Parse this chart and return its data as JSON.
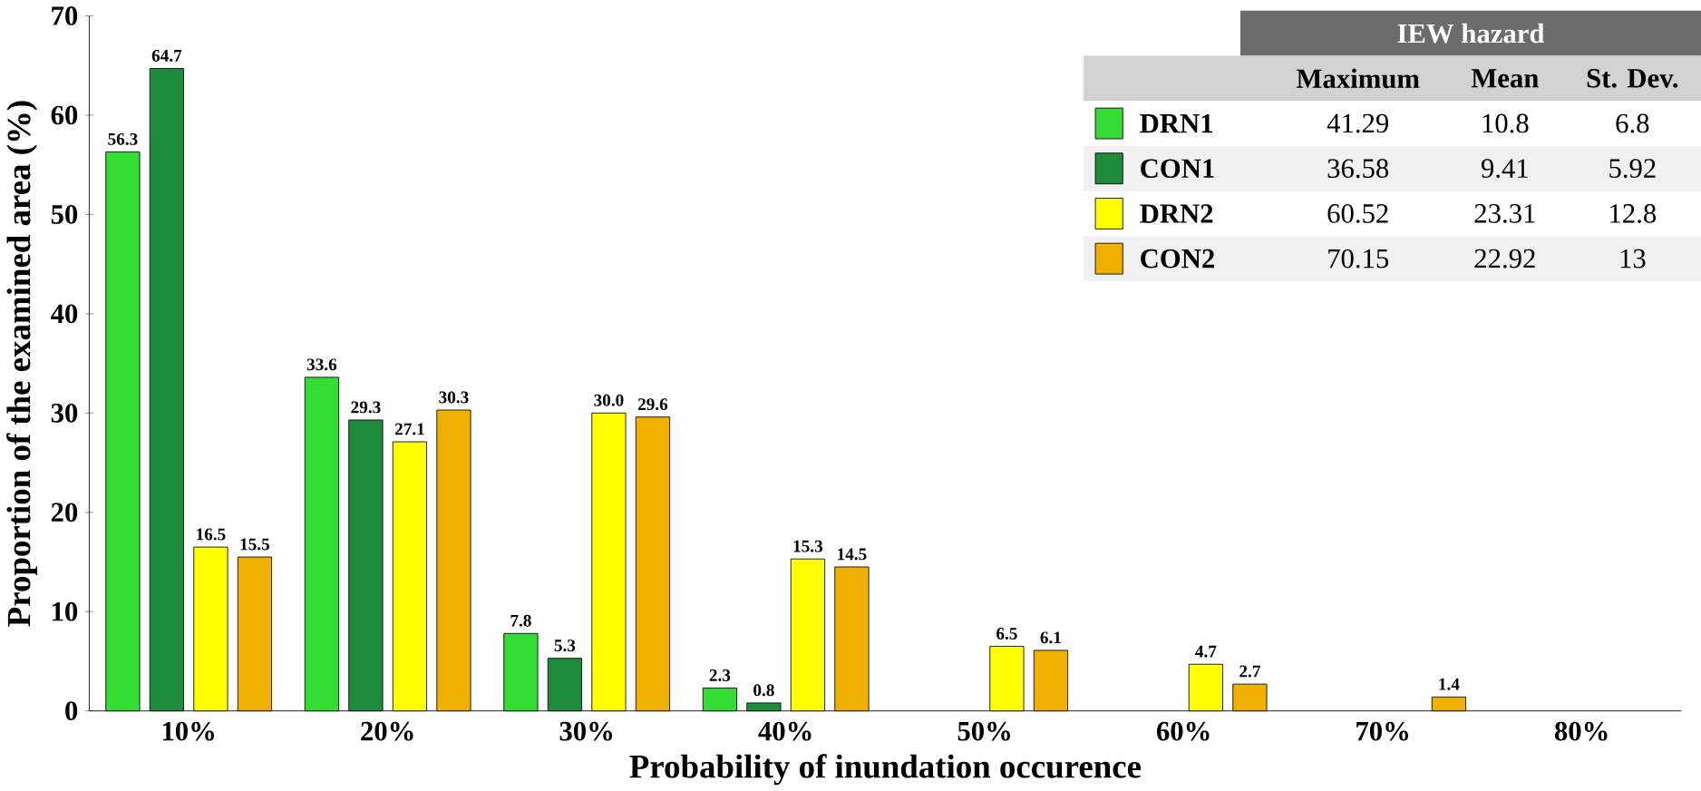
{
  "chart_data": {
    "type": "bar",
    "xlabel": "Probability of inundation occurence",
    "ylabel": "Proportion of the examined area (%)",
    "categories": [
      "10%",
      "20%",
      "30%",
      "40%",
      "50%",
      "60%",
      "70%",
      "80%"
    ],
    "series": [
      {
        "name": "DRN1",
        "color": "#33dd33",
        "values": [
          56.3,
          33.6,
          7.8,
          2.3,
          null,
          null,
          null,
          null
        ],
        "value_labels": [
          "56.3",
          "33.6",
          "7.8",
          "2.3",
          null,
          null,
          null,
          null
        ]
      },
      {
        "name": "CON1",
        "color": "#1e8c3c",
        "values": [
          64.7,
          29.3,
          5.3,
          0.8,
          null,
          null,
          null,
          null
        ],
        "value_labels": [
          "64.7",
          "29.3",
          "5.3",
          "0.8",
          null,
          null,
          null,
          null
        ]
      },
      {
        "name": "DRN2",
        "color": "#ffff00",
        "values": [
          16.5,
          27.1,
          30.0,
          15.3,
          6.5,
          4.7,
          null,
          null
        ],
        "value_labels": [
          "16.5",
          "27.1",
          "30.0",
          "15.3",
          "6.5",
          "4.7",
          null,
          null
        ]
      },
      {
        "name": "CON2",
        "color": "#f0b000",
        "values": [
          15.5,
          30.3,
          29.6,
          14.5,
          6.1,
          2.7,
          1.4,
          null
        ],
        "value_labels": [
          "15.5",
          "30.3",
          "29.6",
          "14.5",
          "6.1",
          "2.7",
          "1.4",
          null
        ]
      }
    ],
    "ylim": [
      0,
      70
    ],
    "yticks": [
      0,
      10,
      20,
      30,
      40,
      50,
      60,
      70
    ],
    "grid": false,
    "legend": "top right",
    "legend_title": "IEW hazard",
    "annotations": [
      "Maximum",
      "Mean",
      "St. Dev.",
      "41.29",
      "10.8",
      "6.8",
      "36.58",
      "9.41",
      "5.92",
      "60.52",
      "23.31",
      "12.8",
      "70.15",
      "22.92",
      "13"
    ]
  }
}
